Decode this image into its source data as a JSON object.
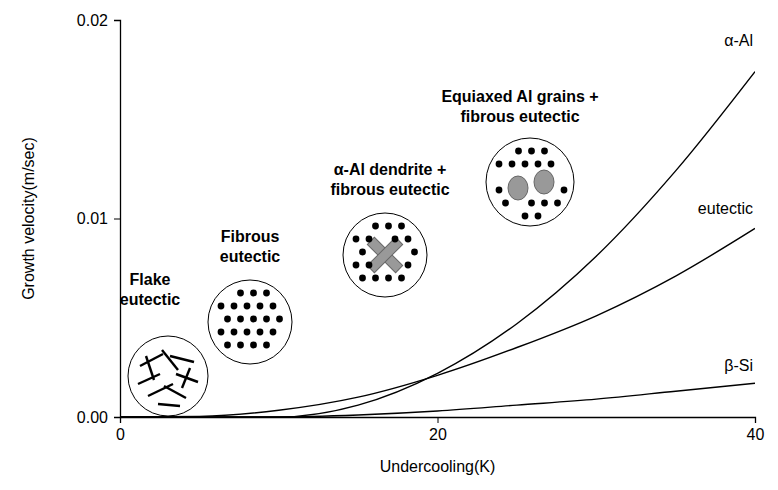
{
  "chart_data": {
    "type": "line",
    "x_label": "Undercooling(K)",
    "y_label": "Growth velocity(m/sec)",
    "x": [
      0,
      5,
      10,
      15,
      20,
      25,
      30,
      35,
      40
    ],
    "series": [
      {
        "name": "α-Al",
        "color": "#000000",
        "values": [
          0,
          0,
          0,
          0.0006,
          0.0022,
          0.0047,
          0.0081,
          0.0124,
          0.0174
        ]
      },
      {
        "name": "eutectic",
        "color": "#000000",
        "values": [
          0,
          3e-05,
          0.00034,
          0.001,
          0.0021,
          0.0035,
          0.0051,
          0.0071,
          0.0095
        ]
      },
      {
        "name": "β-Si",
        "color": "#000000",
        "values": [
          0,
          0,
          0,
          0.0001,
          0.0003,
          0.0006,
          0.0009,
          0.0013,
          0.0017
        ]
      }
    ],
    "annotations": [
      "Flake eutectic",
      "Fibrous eutectic",
      "α-Al dendrite + fibrous eutectic",
      "Equiaxed Al grains + fibrous eutectic"
    ],
    "xlim": [
      0,
      40
    ],
    "ylim": [
      0,
      0.02
    ],
    "xticks": [
      0,
      20,
      40
    ],
    "yticks": [
      {
        "value": 0,
        "label": "0.00"
      },
      0.01,
      0.02
    ],
    "grid": false
  }
}
